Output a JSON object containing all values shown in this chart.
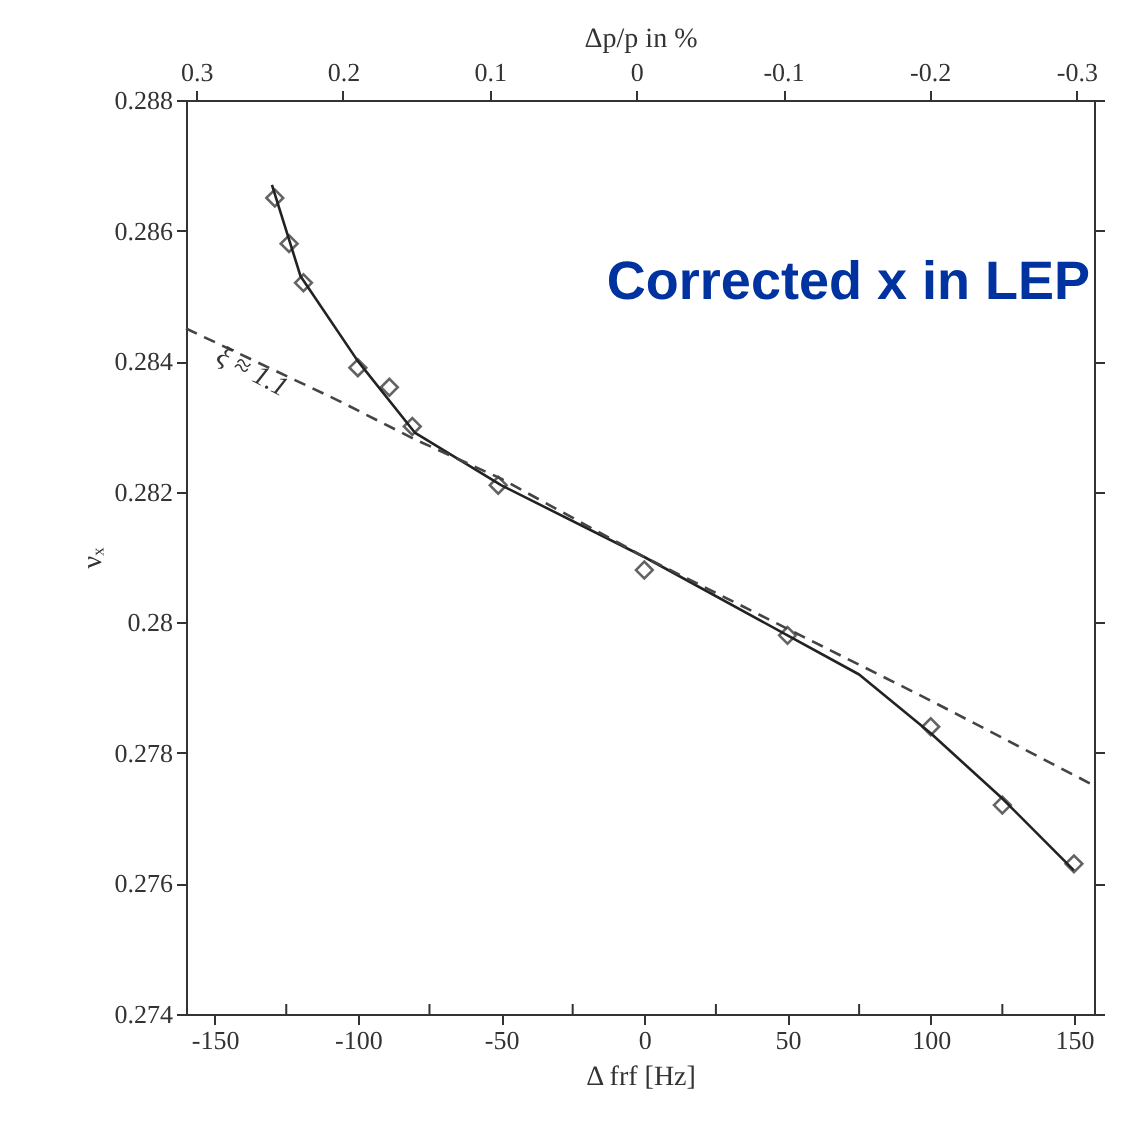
{
  "chart_data": {
    "type": "scatter",
    "xlabel": "Δ frf   [Hz]",
    "ylabel": "νₓ",
    "x2label": "Δp/p in %",
    "xlim": [
      -160,
      157
    ],
    "ylim": [
      0.274,
      0.288
    ],
    "x2lim": [
      0.307,
      -0.312
    ],
    "xticks": [
      -150,
      {
        "value": -125,
        "label": null
      },
      -100,
      {
        "value": -75,
        "label": null
      },
      -50,
      {
        "value": -25,
        "label": null
      },
      0,
      {
        "value": 25,
        "label": null
      },
      50,
      {
        "value": 75,
        "label": null
      },
      100,
      {
        "value": 125,
        "label": null
      },
      150
    ],
    "yticks": [
      0.274,
      0.276,
      0.278,
      0.28,
      0.282,
      0.284,
      0.286,
      0.288
    ],
    "x2ticks": [
      0.3,
      0.2,
      0.1,
      0,
      -0.1,
      -0.2,
      -0.3
    ],
    "series": [
      {
        "color": "#222222",
        "marker": "diamond",
        "x": [
          -129,
          -124,
          -119,
          -100,
          -89,
          -81,
          -51,
          0,
          50,
          100,
          125,
          150
        ],
        "values": [
          0.2865,
          0.2858,
          0.2852,
          0.2839,
          0.2836,
          0.283,
          0.2821,
          0.2808,
          0.2798,
          0.2784,
          0.2772,
          0.2763
        ]
      },
      {
        "type": "line",
        "color": "#222222",
        "line_style": "solid",
        "marker": "none",
        "x": [
          -130,
          -120,
          -100,
          -80,
          -50,
          0,
          50,
          75,
          100,
          125,
          150
        ],
        "values": [
          0.2867,
          0.2853,
          0.284,
          0.2829,
          0.2821,
          0.281,
          0.2798,
          0.2792,
          0.2783,
          0.2773,
          0.2762
        ]
      },
      {
        "type": "line",
        "color": "#444444",
        "line_style": "dashed",
        "marker": "none",
        "x": [
          -160,
          -107,
          -80,
          -50,
          0,
          50,
          100,
          157
        ],
        "values": [
          0.2845,
          0.2834,
          0.2828,
          0.2822,
          0.281,
          0.2799,
          0.2788,
          0.2775
        ]
      }
    ],
    "annotations": [
      "ξ ≈ 1.1",
      "Corrected x in LEP"
    ],
    "grid": false
  }
}
